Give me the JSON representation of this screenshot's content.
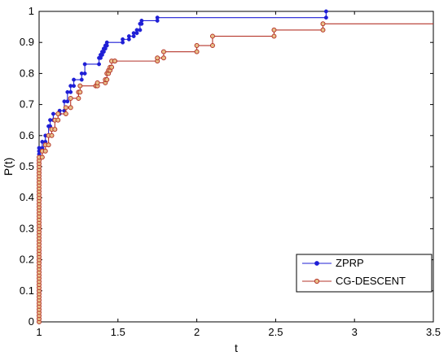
{
  "chart_data": {
    "type": "line",
    "xlabel": "t",
    "ylabel": "P(t)",
    "xlim": [
      1,
      3.5
    ],
    "ylim": [
      0,
      1
    ],
    "xticks": [
      1,
      1.5,
      2,
      2.5,
      3,
      3.5
    ],
    "xtick_labels": [
      "1",
      "1.5",
      "2",
      "2.5",
      "3",
      "3.5"
    ],
    "yticks": [
      0,
      0.1,
      0.2,
      0.3,
      0.4,
      0.5,
      0.6,
      0.7,
      0.8,
      0.9,
      1
    ],
    "ytick_labels": [
      "0",
      "0.1",
      "0.2",
      "0.3",
      "0.4",
      "0.5",
      "0.6",
      "0.7",
      "0.8",
      "0.9",
      "1"
    ],
    "grid": false,
    "legend_position": "bottom-right",
    "series": [
      {
        "name": "ZPRP",
        "color": "#1f1fd6",
        "marker": "filled-dot",
        "step_points": [
          [
            1.0,
            0.56
          ],
          [
            1.02,
            0.58
          ],
          [
            1.04,
            0.6
          ],
          [
            1.06,
            0.63
          ],
          [
            1.07,
            0.65
          ],
          [
            1.09,
            0.67
          ],
          [
            1.13,
            0.68
          ],
          [
            1.16,
            0.71
          ],
          [
            1.18,
            0.74
          ],
          [
            1.2,
            0.76
          ],
          [
            1.22,
            0.78
          ],
          [
            1.27,
            0.8
          ],
          [
            1.29,
            0.83
          ],
          [
            1.38,
            0.85
          ],
          [
            1.39,
            0.86
          ],
          [
            1.4,
            0.87
          ],
          [
            1.41,
            0.88
          ],
          [
            1.42,
            0.89
          ],
          [
            1.43,
            0.9
          ],
          [
            1.53,
            0.91
          ],
          [
            1.57,
            0.92
          ],
          [
            1.6,
            0.93
          ],
          [
            1.62,
            0.94
          ],
          [
            1.64,
            0.96
          ],
          [
            1.65,
            0.97
          ],
          [
            1.75,
            0.98
          ],
          [
            2.82,
            1.0
          ]
        ],
        "end_x": 2.82
      },
      {
        "name": "CG-DESCENT",
        "color": "#b5352a",
        "marker": "open-circle",
        "step_points": [
          [
            1.0,
            0.53
          ],
          [
            1.02,
            0.55
          ],
          [
            1.04,
            0.57
          ],
          [
            1.06,
            0.6
          ],
          [
            1.08,
            0.62
          ],
          [
            1.1,
            0.65
          ],
          [
            1.12,
            0.67
          ],
          [
            1.17,
            0.69
          ],
          [
            1.2,
            0.72
          ],
          [
            1.25,
            0.74
          ],
          [
            1.26,
            0.76
          ],
          [
            1.36,
            0.76
          ],
          [
            1.37,
            0.77
          ],
          [
            1.42,
            0.78
          ],
          [
            1.43,
            0.8
          ],
          [
            1.44,
            0.81
          ],
          [
            1.45,
            0.82
          ],
          [
            1.46,
            0.84
          ],
          [
            1.48,
            0.84
          ],
          [
            1.75,
            0.85
          ],
          [
            1.79,
            0.87
          ],
          [
            2.0,
            0.89
          ],
          [
            2.1,
            0.92
          ],
          [
            2.49,
            0.94
          ],
          [
            2.8,
            0.96
          ]
        ],
        "end_x": 3.5
      }
    ]
  }
}
